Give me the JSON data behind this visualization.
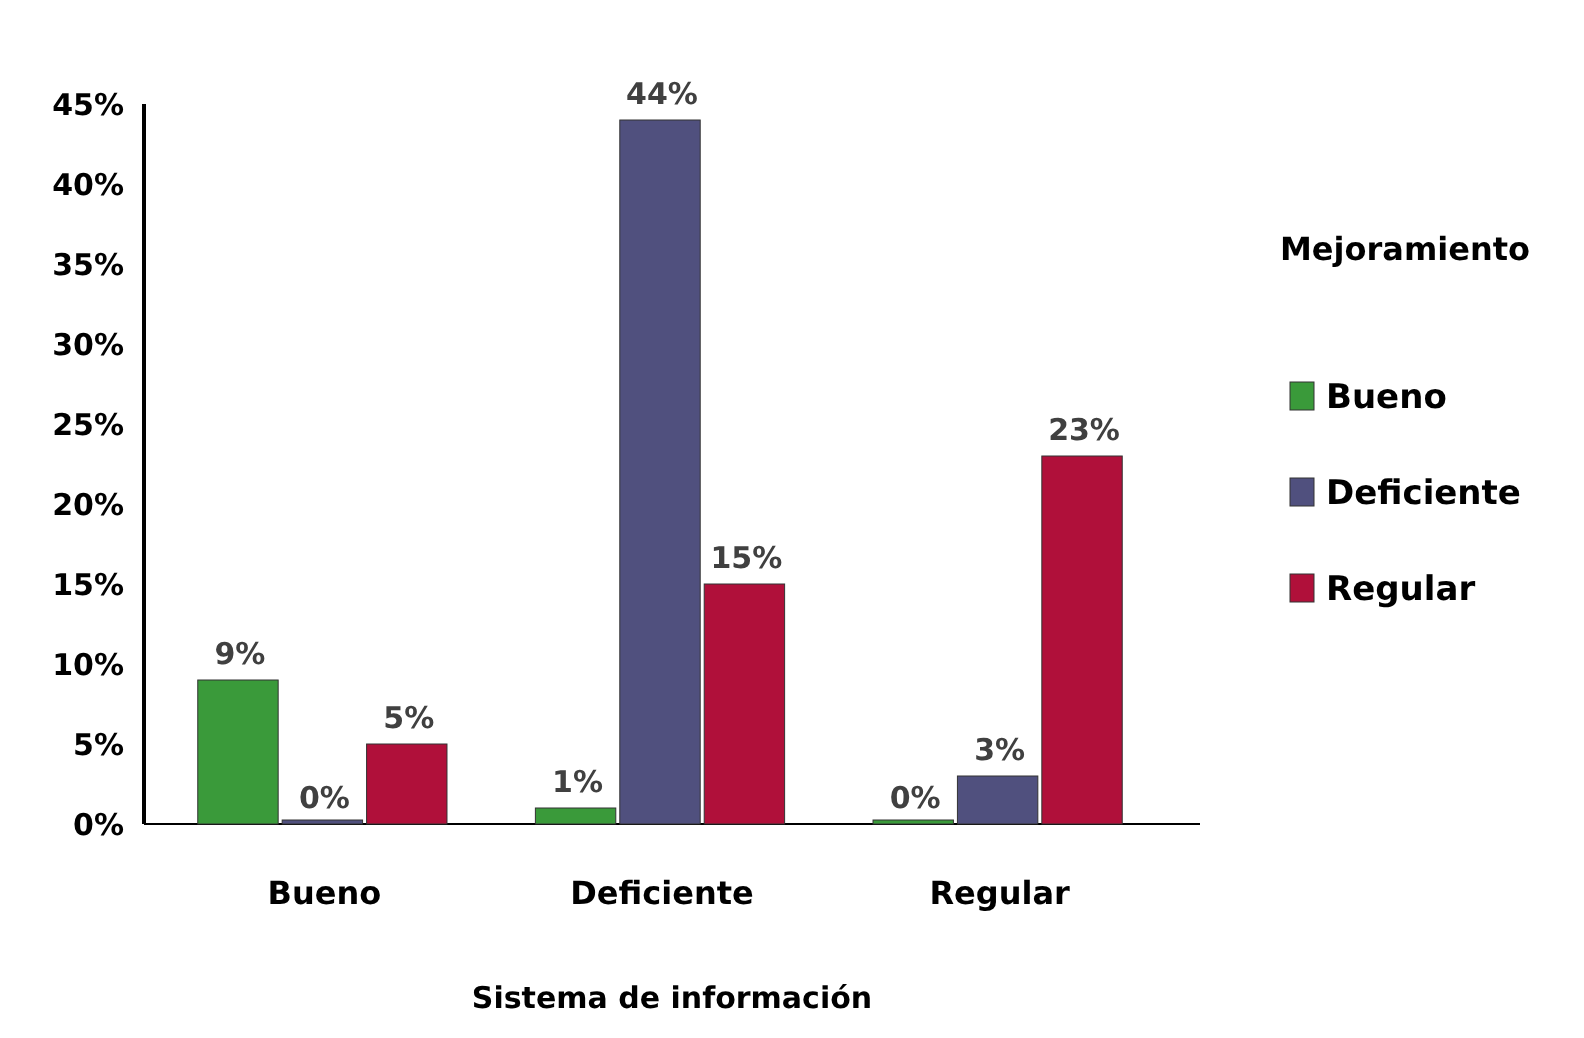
{
  "chart_data": {
    "type": "bar",
    "xlabel": "Sistema de información",
    "legend_title": "Mejoramiento",
    "legend": "right",
    "categories": [
      "Bueno",
      "Deficiente",
      "Regular"
    ],
    "series": [
      {
        "name": "Bueno",
        "color": "#3a9a3a",
        "values": [
          9,
          1,
          0
        ],
        "value_labels": [
          "9%",
          "1%",
          "0%"
        ]
      },
      {
        "name": "Deficiente",
        "color": "#50507e",
        "values": [
          0,
          44,
          3
        ],
        "value_labels": [
          "0%",
          "44%",
          "3%"
        ]
      },
      {
        "name": "Regular",
        "color": "#b0103a",
        "values": [
          5,
          15,
          23
        ],
        "value_labels": [
          "5%",
          "15%",
          "23%"
        ]
      }
    ],
    "ylim": [
      0,
      45
    ],
    "yticks": [
      {
        "value": 0,
        "label": "0%"
      },
      {
        "value": 5,
        "label": "5%"
      },
      {
        "value": 10,
        "label": "10%"
      },
      {
        "value": 15,
        "label": "15%"
      },
      {
        "value": 20,
        "label": "20%"
      },
      {
        "value": 25,
        "label": "25%"
      },
      {
        "value": 30,
        "label": "30%"
      },
      {
        "value": 35,
        "label": "35%"
      },
      {
        "value": 40,
        "label": "40%"
      },
      {
        "value": 45,
        "label": "45%"
      }
    ],
    "grid": false
  }
}
